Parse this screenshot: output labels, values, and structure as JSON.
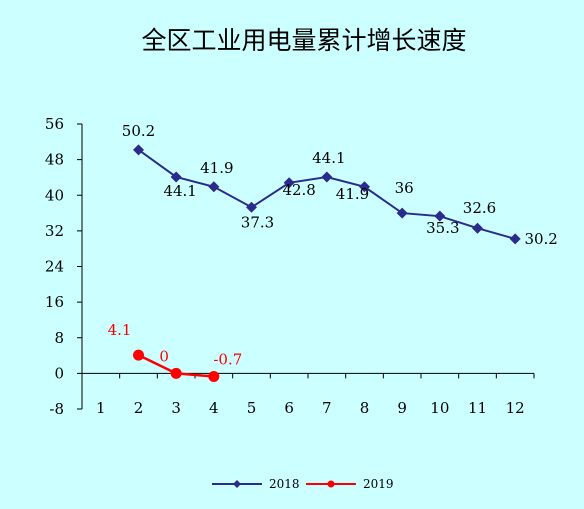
{
  "chart_data": {
    "type": "line",
    "title": "全区工业用电量累计增长速度",
    "xlabel": "",
    "ylabel": "",
    "categories": [
      "1",
      "2",
      "3",
      "4",
      "5",
      "6",
      "7",
      "8",
      "9",
      "10",
      "11",
      "12"
    ],
    "ylim": [
      -8,
      56
    ],
    "yticks": [
      -8,
      0,
      8,
      16,
      24,
      32,
      40,
      48,
      56
    ],
    "grid": false,
    "legend_position": "bottom",
    "series": [
      {
        "name": "2018",
        "color": "#2b2b8c",
        "marker": "diamond",
        "x": [
          2,
          3,
          4,
          5,
          6,
          7,
          8,
          9,
          10,
          11,
          12
        ],
        "values": [
          50.2,
          44.1,
          41.9,
          37.3,
          42.8,
          44.1,
          41.9,
          36,
          35.3,
          32.6,
          30.2
        ],
        "labels": [
          "50.2",
          "44.1",
          "41.9",
          "37.3",
          "42.8",
          "44.1",
          "41.9",
          "36",
          "35.3",
          "32.6",
          "30.2"
        ]
      },
      {
        "name": "2019",
        "color": "#ff0000",
        "marker": "circle",
        "x": [
          2,
          3,
          4
        ],
        "values": [
          4.1,
          0,
          -0.7
        ],
        "labels": [
          "4.1",
          "0",
          "-0.7"
        ]
      }
    ]
  }
}
